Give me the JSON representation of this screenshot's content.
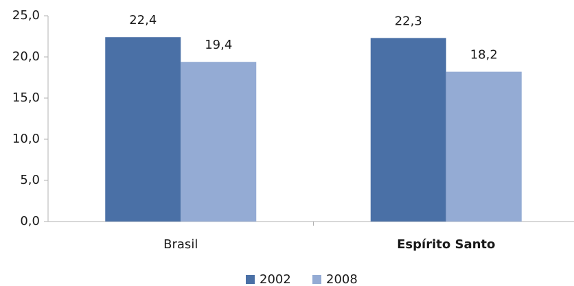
{
  "chart_data": {
    "type": "bar",
    "categories": [
      "Brasil",
      "Espírito Santo"
    ],
    "series": [
      {
        "name": "2002",
        "color": "#4a70a6",
        "values": [
          22.4,
          22.3
        ],
        "value_labels": [
          "22,4",
          "22,3"
        ]
      },
      {
        "name": "2008",
        "color": "#94abd4",
        "values": [
          19.4,
          18.2
        ],
        "value_labels": [
          "19,4",
          "18,2"
        ]
      }
    ],
    "ylim": [
      0,
      25
    ],
    "yticks": [
      {
        "value": 0,
        "label": "0,0"
      },
      {
        "value": 5,
        "label": "5,0"
      },
      {
        "value": 10,
        "label": "10,0"
      },
      {
        "value": 15,
        "label": "15,0"
      },
      {
        "value": 20,
        "label": "20,0"
      },
      {
        "value": 25,
        "label": "25,0"
      }
    ],
    "grid": false,
    "legend": "bottom"
  }
}
